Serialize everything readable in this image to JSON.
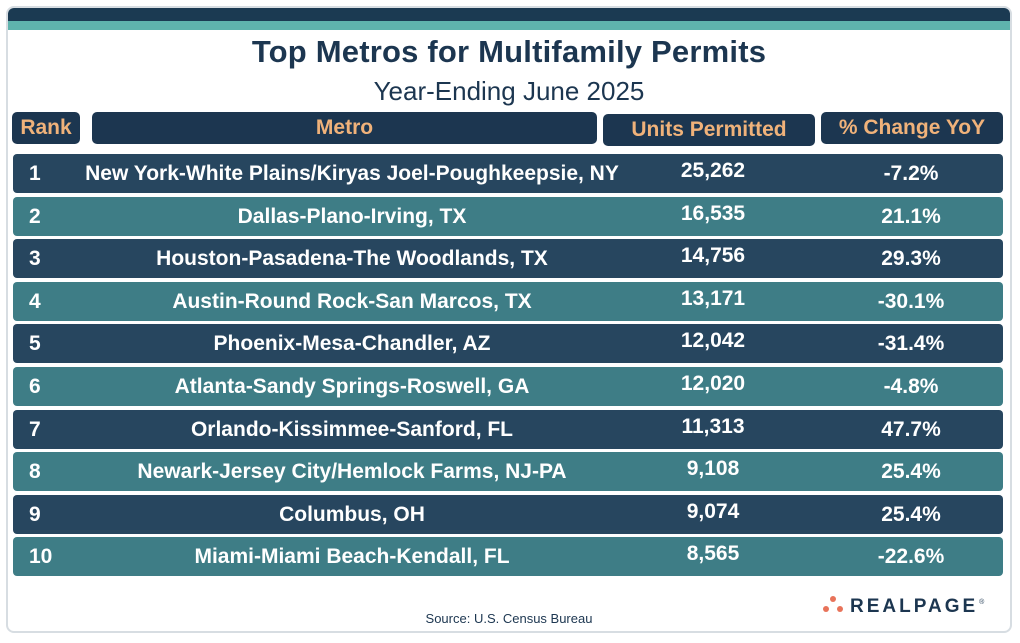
{
  "chart_data": {
    "type": "table",
    "title": "Top Metros for Multifamily Permits",
    "subtitle": "Year-Ending June 2025",
    "columns": [
      "Rank",
      "Metro",
      "Units Permitted",
      "% Change YoY"
    ],
    "rows": [
      {
        "rank": "1",
        "metro": "New York-White Plains/Kiryas Joel-Poughkeepsie, NY",
        "units": "25,262",
        "pct": "-7.2%"
      },
      {
        "rank": "2",
        "metro": "Dallas-Plano-Irving, TX",
        "units": "16,535",
        "pct": "21.1%"
      },
      {
        "rank": "3",
        "metro": "Houston-Pasadena-The Woodlands, TX",
        "units": "14,756",
        "pct": "29.3%"
      },
      {
        "rank": "4",
        "metro": "Austin-Round Rock-San Marcos, TX",
        "units": "13,171",
        "pct": "-30.1%"
      },
      {
        "rank": "5",
        "metro": "Phoenix-Mesa-Chandler, AZ",
        "units": "12,042",
        "pct": "-31.4%"
      },
      {
        "rank": "6",
        "metro": "Atlanta-Sandy Springs-Roswell, GA",
        "units": "12,020",
        "pct": "-4.8%"
      },
      {
        "rank": "7",
        "metro": "Orlando-Kissimmee-Sanford, FL",
        "units": "11,313",
        "pct": "47.7%"
      },
      {
        "rank": "8",
        "metro": "Newark-Jersey City/Hemlock Farms, NJ-PA",
        "units": "9,108",
        "pct": "25.4%"
      },
      {
        "rank": "9",
        "metro": "Columbus, OH",
        "units": "9,074",
        "pct": "25.4%"
      },
      {
        "rank": "10",
        "metro": "Miami-Miami Beach-Kendall, FL",
        "units": "8,565",
        "pct": "-22.6%"
      }
    ],
    "source": "Source: U.S. Census Bureau"
  },
  "brand": {
    "name": "REALPAGE",
    "icon": "dots-logo-icon"
  },
  "colors": {
    "navy": "#1c3650",
    "teal": "#3e7d86",
    "row_dark": "#27465f",
    "header_text": "#f0b27a",
    "accent_orange": "#e8735a"
  }
}
